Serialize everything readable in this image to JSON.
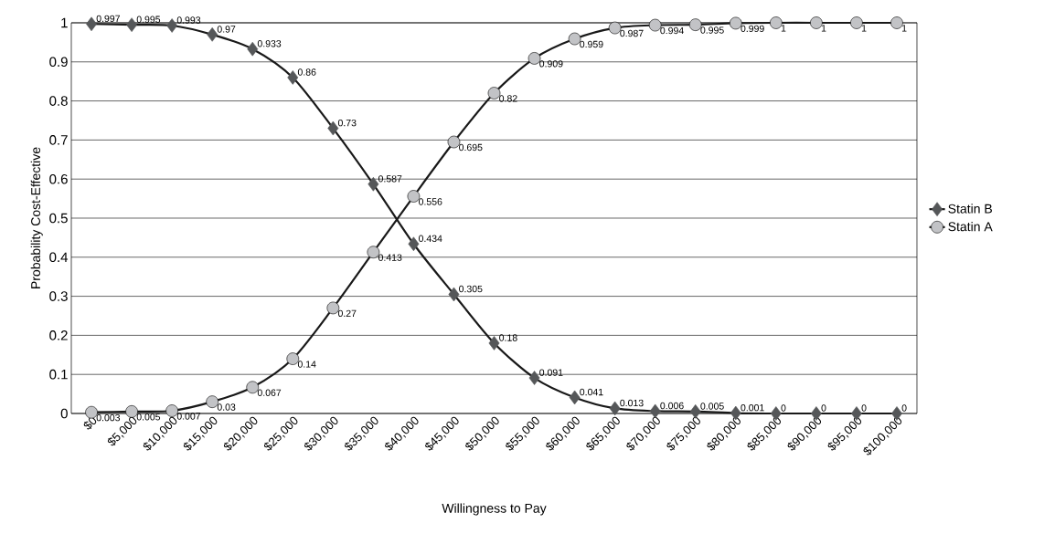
{
  "chart_data": {
    "type": "line",
    "xlabel": "Willingness to Pay",
    "ylabel": "Probability Cost-Effective",
    "categories": [
      "$0",
      "$5,000",
      "$10,000",
      "$15,000",
      "$20,000",
      "$25,000",
      "$30,000",
      "$35,000",
      "$40,000",
      "$45,000",
      "$50,000",
      "$55,000",
      "$60,000",
      "$65,000",
      "$70,000",
      "$75,000",
      "$80,000",
      "$85,000",
      "$90,000",
      "$95,000",
      "$100,000"
    ],
    "series": [
      {
        "name": "Statin B",
        "color": "#555759",
        "marker": "diamond",
        "values": [
          0.997,
          0.995,
          0.993,
          0.97,
          0.933,
          0.86,
          0.73,
          0.587,
          0.434,
          0.305,
          0.18,
          0.091,
          0.041,
          0.013,
          0.006,
          0.005,
          0.001,
          0,
          0,
          0,
          0
        ]
      },
      {
        "name": "Statin A",
        "color": "#c2c3c6",
        "marker": "circle",
        "values": [
          0.003,
          0.005,
          0.007,
          0.03,
          0.067,
          0.14,
          0.27,
          0.413,
          0.556,
          0.695,
          0.82,
          0.909,
          0.959,
          0.987,
          0.994,
          0.995,
          0.999,
          1,
          1,
          1,
          1
        ]
      }
    ],
    "ylim": [
      0,
      1
    ],
    "yticks": [
      0,
      0.1,
      0.2,
      0.3,
      0.4,
      0.5,
      0.6,
      0.7,
      0.8,
      0.9,
      1
    ],
    "grid": "y",
    "legend": "right",
    "data_labels": true,
    "line_style": "solid"
  }
}
